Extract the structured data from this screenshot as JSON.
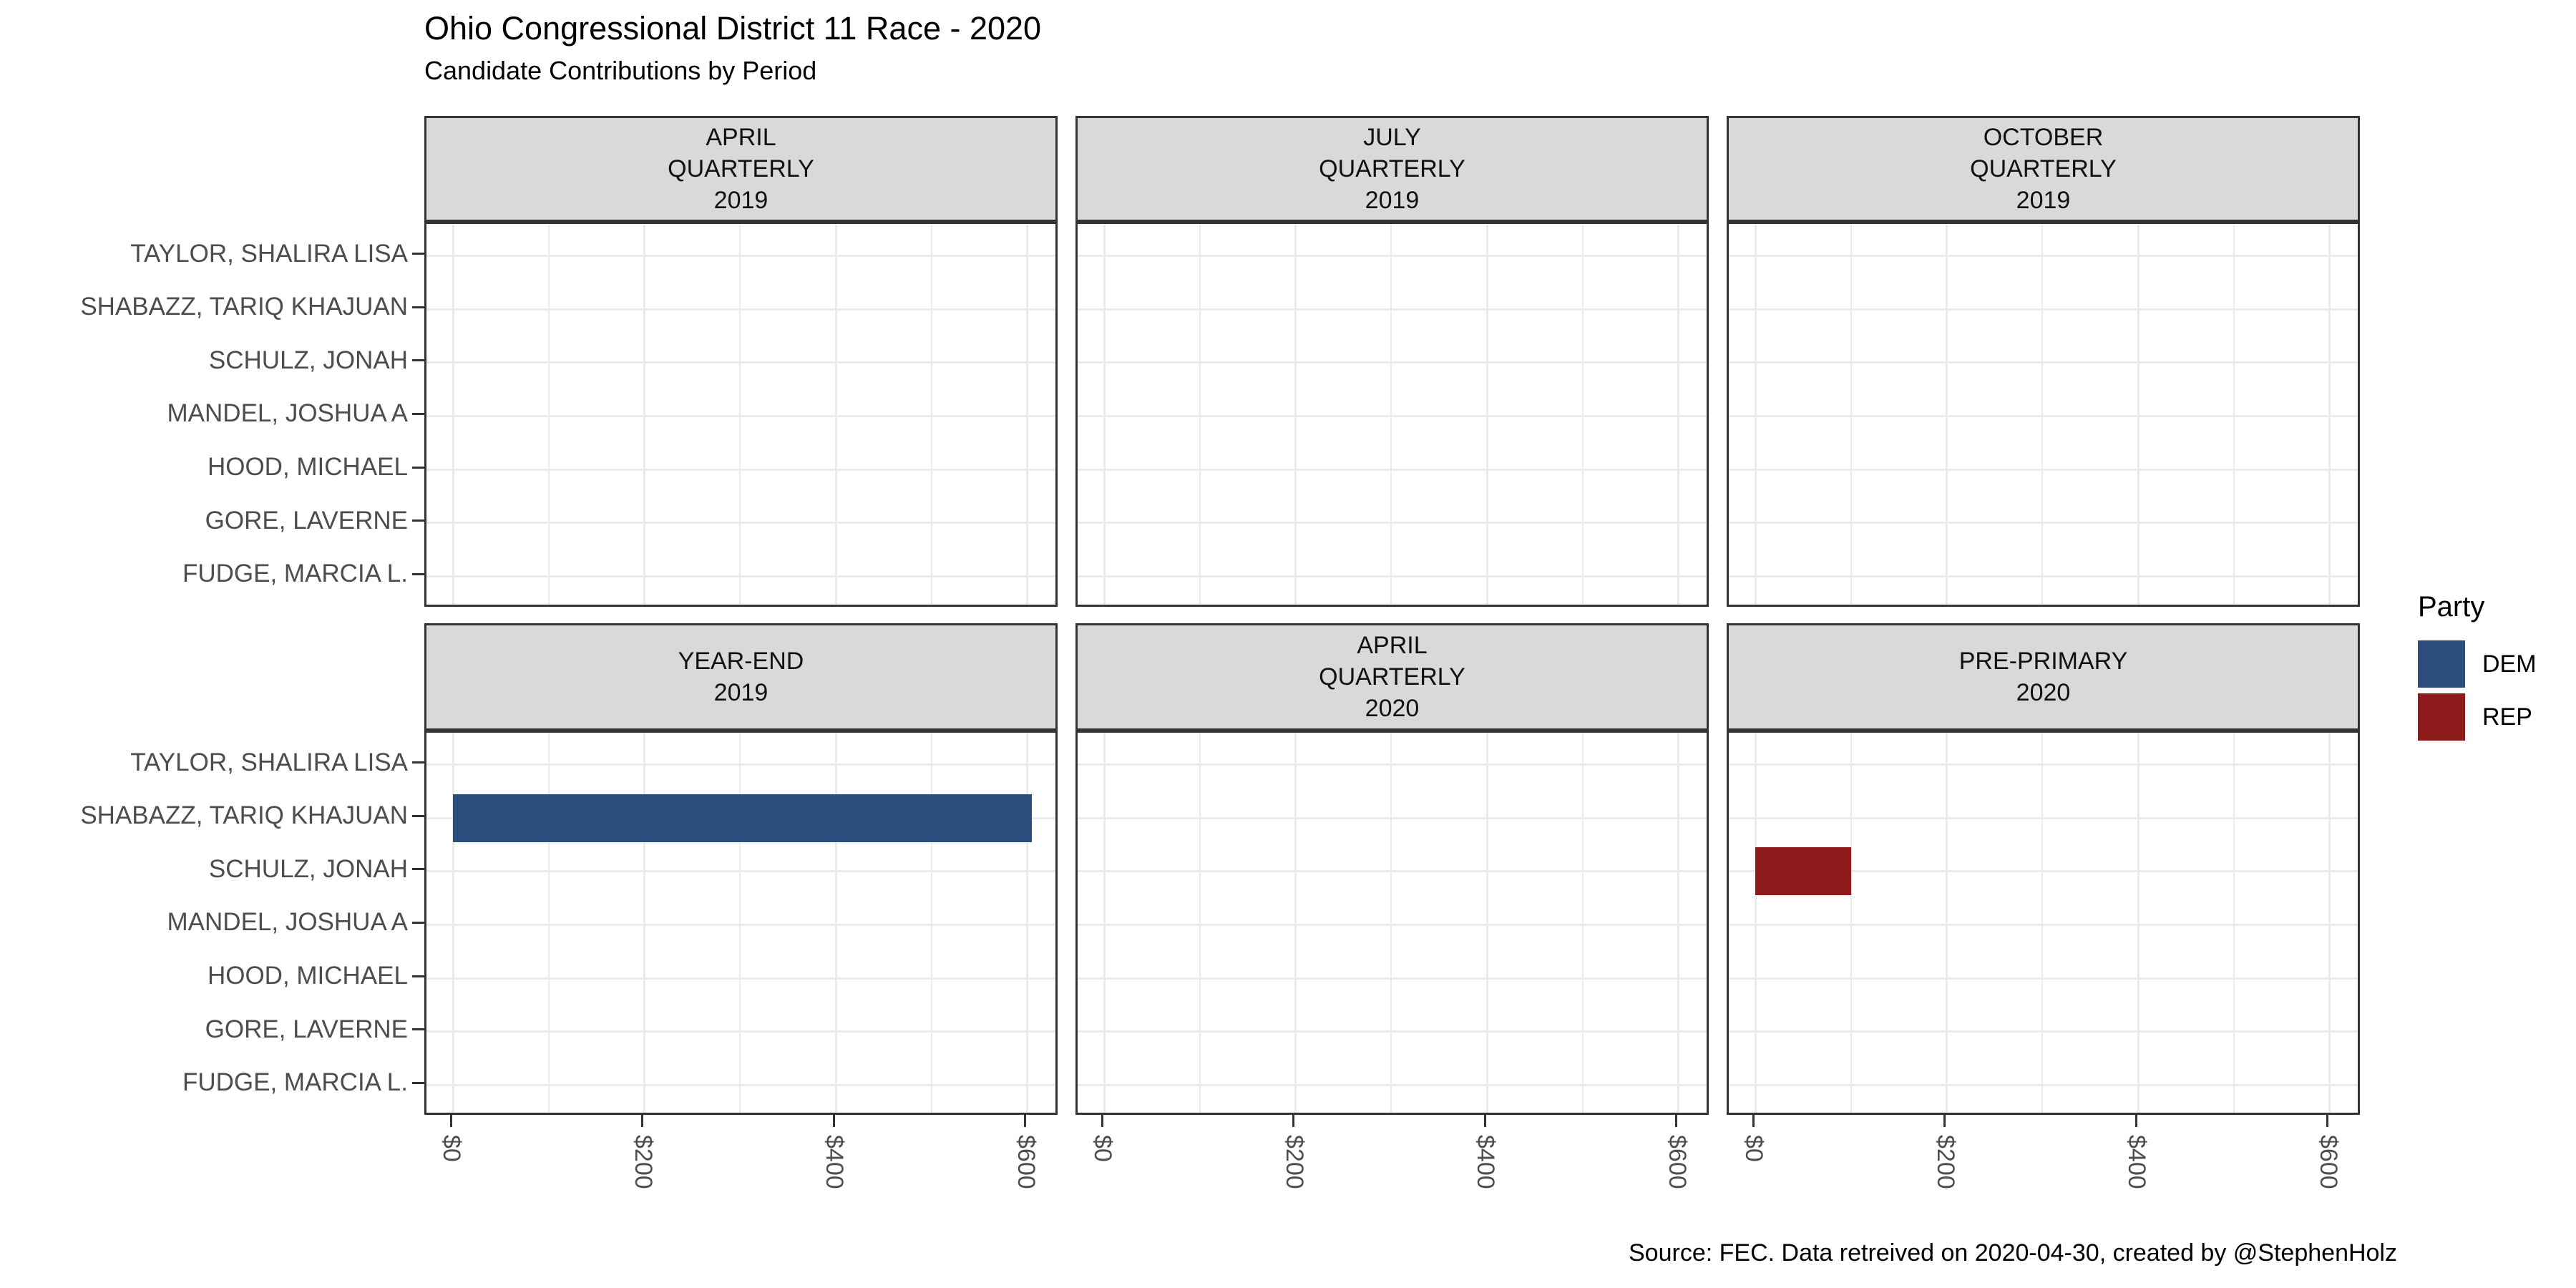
{
  "chart_data": {
    "type": "bar",
    "orientation": "horizontal",
    "title": "Ohio Congressional District 11 Race - 2020",
    "subtitle": "Candidate Contributions by Period",
    "caption": "Source: FEC. Data retreived on 2020-04-30, created by @StephenHolz",
    "candidates": [
      "TAYLOR, SHALIRA LISA",
      "SHABAZZ, TARIQ KHAJUAN",
      "SCHULZ, JONAH",
      "MANDEL, JOSHUA A",
      "HOOD, MICHAEL",
      "GORE, LAVERNE",
      "FUDGE, MARCIA L."
    ],
    "facets": [
      {
        "label": "APRIL\nQUARTERLY\n2019",
        "bars": []
      },
      {
        "label": "JULY\nQUARTERLY\n2019",
        "bars": []
      },
      {
        "label": "OCTOBER\nQUARTERLY\n2019",
        "bars": []
      },
      {
        "label": "YEAR-END\n2019",
        "bars": [
          {
            "candidate": "SHABAZZ, TARIQ KHAJUAN",
            "party": "DEM",
            "value": 605
          }
        ]
      },
      {
        "label": "APRIL\nQUARTERLY\n2020",
        "bars": []
      },
      {
        "label": "PRE-PRIMARY\n2020",
        "bars": [
          {
            "candidate": "SCHULZ, JONAH",
            "party": "REP",
            "value": 100
          }
        ]
      }
    ],
    "x_axis": {
      "tick_labels": [
        "$0",
        "$200",
        "$400",
        "$600"
      ],
      "tick_values": [
        0,
        200,
        400,
        600
      ],
      "minor_values": [
        100,
        300,
        500
      ],
      "xlim": [
        -28,
        634
      ]
    },
    "y_axis": {
      "categories_top_to_bottom": true
    },
    "legend": {
      "title": "Party",
      "position": "right",
      "entries": [
        {
          "label": "DEM",
          "color": "#2C4D7E"
        },
        {
          "label": "REP",
          "color": "#8E1B1B"
        }
      ]
    },
    "grid": {
      "major_color": "#EBEBEB",
      "minor_color": "#EBEBEB",
      "horizontal_at_categories": true
    },
    "style": {
      "strip_bg": "#D9D9D9",
      "panel_border": "#333333",
      "axis_text": "#4D4D4D",
      "tick_color": "#333333"
    }
  }
}
